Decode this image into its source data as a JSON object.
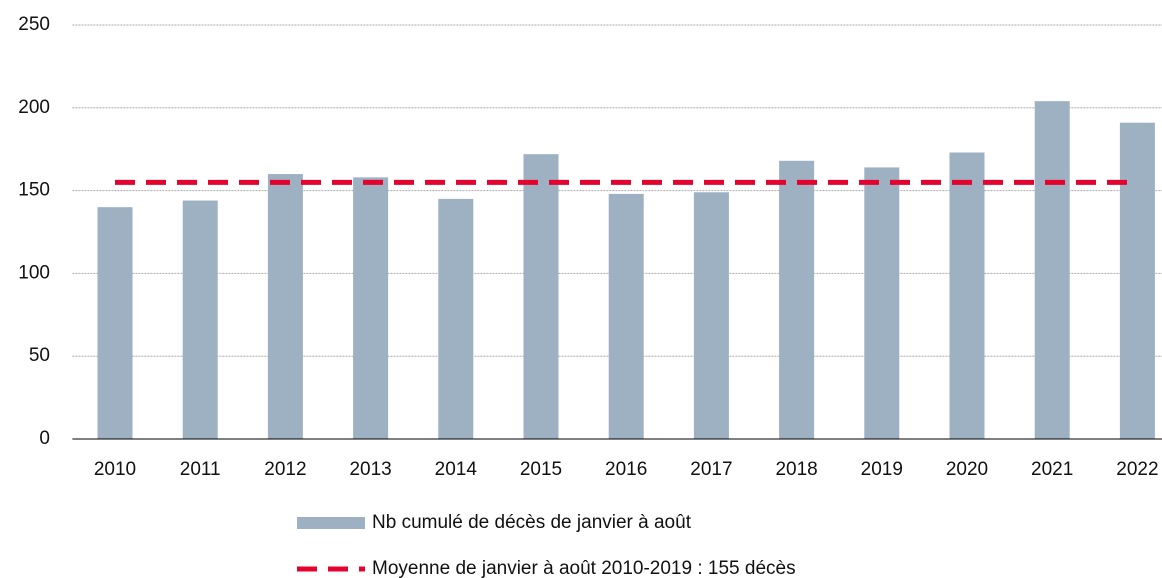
{
  "chart_data": {
    "type": "bar",
    "categories": [
      "2010",
      "2011",
      "2012",
      "2013",
      "2014",
      "2015",
      "2016",
      "2017",
      "2018",
      "2019",
      "2020",
      "2021",
      "2022"
    ],
    "series": [
      {
        "name": "Nb cumulé de décès de janvier à août",
        "type": "bar",
        "color": "#9eb1c2",
        "values": [
          140,
          144,
          160,
          158,
          145,
          172,
          148,
          149,
          168,
          164,
          173,
          204,
          191
        ]
      },
      {
        "name": "Moyenne de janvier à août 2010-2019 : 155 décès",
        "type": "line",
        "color": "#e4032e",
        "dashed": true,
        "values": [
          155,
          155,
          155,
          155,
          155,
          155,
          155,
          155,
          155,
          155,
          155,
          155,
          155
        ]
      }
    ],
    "ylim": [
      0,
      250
    ],
    "yticks": [
      0,
      50,
      100,
      150,
      200,
      250
    ],
    "grid": true
  }
}
